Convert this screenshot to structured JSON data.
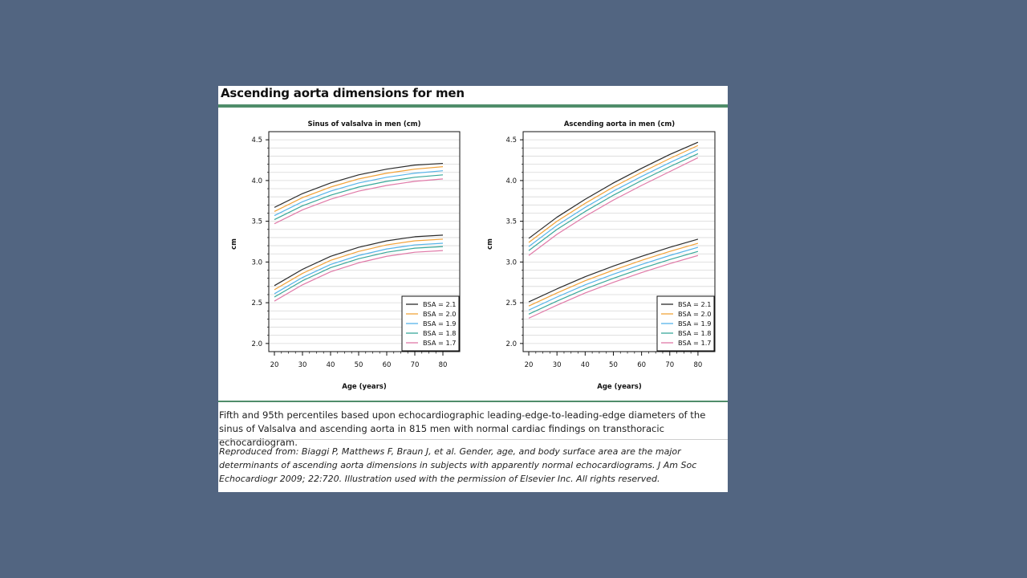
{
  "page": {
    "title": "Ascending aorta dimensions for men",
    "caption": "Fifth and 95th percentiles based upon echocardiographic leading-edge-to-leading-edge diameters of the sinus of Valsalva and ascending aorta in 815 men with normal cardiac findings on transthoracic echocardiogram.",
    "source": "Reproduced from: Biaggi P, Matthews F, Braun J, et al. Gender, age, and body surface area are the major determinants of ascending aorta dimensions in subjects with apparently normal echocardiograms. J Am Soc Echocardiogr 2009; 22:720. Illustration used with the permission of Elsevier Inc. All rights reserved."
  },
  "colors": {
    "BSA = 2.1": "#2b2b2b",
    "BSA = 2.0": "#f2a33a",
    "BSA = 1.9": "#56b4e9",
    "BSA = 1.8": "#3aa89a",
    "BSA = 1.7": "#e07aa8"
  },
  "chart_data": [
    {
      "type": "line",
      "title": "Sinus of valsalva in men (cm)",
      "xlabel": "Age (years)",
      "ylabel": "cm",
      "xlim": [
        18,
        86
      ],
      "ylim": [
        1.9,
        4.6
      ],
      "xticks": [
        20,
        30,
        40,
        50,
        60,
        70,
        80
      ],
      "yticks": [
        "2.0",
        "2.5",
        "3.0",
        "3.5",
        "4.0",
        "4.5"
      ],
      "grid": true,
      "legend_position": "bottom-right",
      "x": [
        20,
        30,
        40,
        50,
        60,
        70,
        80
      ],
      "series": [
        {
          "name": "BSA = 2.1",
          "group": "95th",
          "values": [
            3.67,
            3.84,
            3.97,
            4.07,
            4.14,
            4.19,
            4.21
          ]
        },
        {
          "name": "BSA = 2.0",
          "group": "95th",
          "values": [
            3.62,
            3.79,
            3.92,
            4.02,
            4.09,
            4.14,
            4.17
          ]
        },
        {
          "name": "BSA = 1.9",
          "group": "95th",
          "values": [
            3.57,
            3.74,
            3.87,
            3.97,
            4.04,
            4.09,
            4.12
          ]
        },
        {
          "name": "BSA = 1.8",
          "group": "95th",
          "values": [
            3.52,
            3.69,
            3.82,
            3.92,
            3.99,
            4.04,
            4.07
          ]
        },
        {
          "name": "BSA = 1.7",
          "group": "95th",
          "values": [
            3.47,
            3.64,
            3.77,
            3.87,
            3.94,
            3.99,
            4.02
          ]
        },
        {
          "name": "BSA = 2.1",
          "group": "5th",
          "values": [
            2.71,
            2.91,
            3.07,
            3.18,
            3.26,
            3.31,
            3.33
          ]
        },
        {
          "name": "BSA = 2.0",
          "group": "5th",
          "values": [
            2.66,
            2.86,
            3.02,
            3.13,
            3.21,
            3.26,
            3.28
          ]
        },
        {
          "name": "BSA = 1.9",
          "group": "5th",
          "values": [
            2.61,
            2.81,
            2.97,
            3.08,
            3.16,
            3.21,
            3.23
          ]
        },
        {
          "name": "BSA = 1.8",
          "group": "5th",
          "values": [
            2.57,
            2.77,
            2.93,
            3.04,
            3.12,
            3.17,
            3.19
          ]
        },
        {
          "name": "BSA = 1.7",
          "group": "5th",
          "values": [
            2.52,
            2.72,
            2.88,
            2.99,
            3.07,
            3.12,
            3.14
          ]
        }
      ]
    },
    {
      "type": "line",
      "title": "Ascending aorta in men (cm)",
      "xlabel": "Age (years)",
      "ylabel": "cm",
      "xlim": [
        18,
        86
      ],
      "ylim": [
        1.9,
        4.6
      ],
      "xticks": [
        20,
        30,
        40,
        50,
        60,
        70,
        80
      ],
      "yticks": [
        "2.0",
        "2.5",
        "3.0",
        "3.5",
        "4.0",
        "4.5"
      ],
      "grid": true,
      "legend_position": "bottom-right",
      "x": [
        20,
        30,
        40,
        50,
        60,
        70,
        80
      ],
      "series": [
        {
          "name": "BSA = 2.1",
          "group": "95th",
          "values": [
            3.29,
            3.55,
            3.77,
            3.97,
            4.15,
            4.32,
            4.47
          ]
        },
        {
          "name": "BSA = 2.0",
          "group": "95th",
          "values": [
            3.24,
            3.5,
            3.72,
            3.92,
            4.1,
            4.27,
            4.43
          ]
        },
        {
          "name": "BSA = 1.9",
          "group": "95th",
          "values": [
            3.19,
            3.45,
            3.67,
            3.87,
            4.05,
            4.22,
            4.38
          ]
        },
        {
          "name": "BSA = 1.8",
          "group": "95th",
          "values": [
            3.14,
            3.4,
            3.62,
            3.82,
            4.0,
            4.17,
            4.33
          ]
        },
        {
          "name": "BSA = 1.7",
          "group": "95th",
          "values": [
            3.08,
            3.34,
            3.56,
            3.76,
            3.94,
            4.11,
            4.28
          ]
        },
        {
          "name": "BSA = 2.1",
          "group": "5th",
          "values": [
            2.51,
            2.67,
            2.82,
            2.95,
            3.07,
            3.18,
            3.28
          ]
        },
        {
          "name": "BSA = 2.0",
          "group": "5th",
          "values": [
            2.46,
            2.62,
            2.77,
            2.9,
            3.02,
            3.13,
            3.23
          ]
        },
        {
          "name": "BSA = 1.9",
          "group": "5th",
          "values": [
            2.41,
            2.57,
            2.72,
            2.85,
            2.97,
            3.08,
            3.18
          ]
        },
        {
          "name": "BSA = 1.8",
          "group": "5th",
          "values": [
            2.36,
            2.52,
            2.67,
            2.8,
            2.92,
            3.03,
            3.13
          ]
        },
        {
          "name": "BSA = 1.7",
          "group": "5th",
          "values": [
            2.31,
            2.47,
            2.62,
            2.75,
            2.87,
            2.98,
            3.08
          ]
        }
      ]
    }
  ]
}
